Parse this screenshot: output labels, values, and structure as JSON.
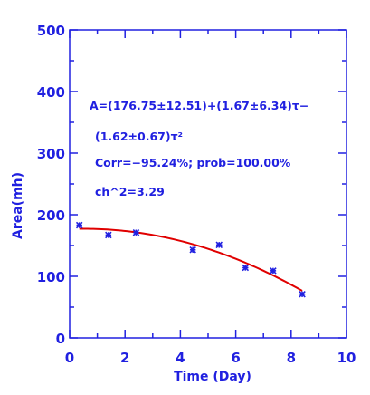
{
  "chart_data": {
    "type": "scatter",
    "title": "",
    "xlabel": "Time (Day)",
    "ylabel": "Area(mh)",
    "xlim": [
      0,
      10
    ],
    "ylim": [
      0,
      500
    ],
    "xticks": [
      0,
      2,
      4,
      6,
      8,
      10
    ],
    "yticks": [
      0,
      100,
      200,
      300,
      400,
      500
    ],
    "grid": false,
    "colors": {
      "axis": "#2020e0",
      "points": "#2020e0",
      "fit": "#e00000"
    },
    "points": {
      "x": [
        0.35,
        1.4,
        2.4,
        4.45,
        5.4,
        6.35,
        7.35,
        8.4
      ],
      "y": [
        183,
        167,
        171,
        143,
        151,
        114,
        109,
        71
      ]
    },
    "fit": {
      "type": "quadratic",
      "coefficients": [
        176.75,
        1.67,
        -1.62
      ],
      "x_range": [
        0.35,
        8.4
      ]
    },
    "annotations": [
      "A=(176.75±12.51)+(1.67±6.34)τ−",
      "(1.62±0.67)τ²",
      "Corr=−95.24%;   prob=100.00%",
      "ch^2=3.29"
    ]
  }
}
